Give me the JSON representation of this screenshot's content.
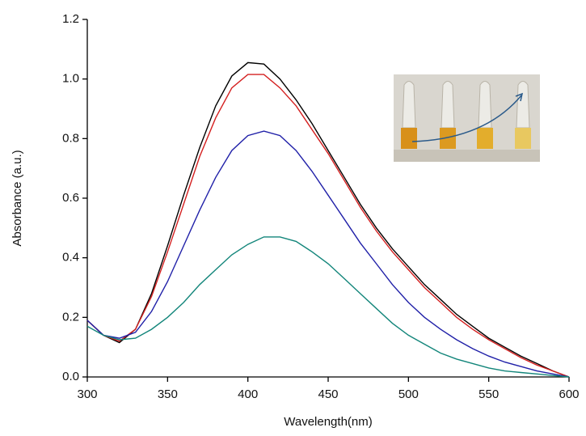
{
  "chart_data": {
    "type": "line",
    "x_label": "Wavelength(nm)",
    "y_label": "Absorbance (a.u.)",
    "x": [
      300,
      310,
      320,
      330,
      340,
      350,
      360,
      370,
      380,
      390,
      400,
      410,
      420,
      430,
      440,
      450,
      460,
      470,
      480,
      490,
      500,
      510,
      520,
      530,
      540,
      550,
      560,
      570,
      580,
      590,
      600
    ],
    "series": [
      {
        "color": "#000000",
        "values": [
          0.19,
          0.14,
          0.115,
          0.16,
          0.28,
          0.44,
          0.61,
          0.77,
          0.91,
          1.01,
          1.055,
          1.05,
          1.0,
          0.93,
          0.85,
          0.76,
          0.67,
          0.58,
          0.5,
          0.43,
          0.37,
          0.31,
          0.26,
          0.21,
          0.17,
          0.13,
          0.1,
          0.07,
          0.045,
          0.02,
          0.0
        ]
      },
      {
        "color": "#d42020",
        "values": [
          0.19,
          0.14,
          0.12,
          0.16,
          0.27,
          0.42,
          0.58,
          0.74,
          0.87,
          0.97,
          1.015,
          1.015,
          0.97,
          0.91,
          0.83,
          0.75,
          0.66,
          0.57,
          0.49,
          0.42,
          0.36,
          0.3,
          0.25,
          0.2,
          0.16,
          0.125,
          0.095,
          0.065,
          0.04,
          0.02,
          0.0
        ]
      },
      {
        "color": "#2020a8",
        "values": [
          0.19,
          0.14,
          0.13,
          0.15,
          0.22,
          0.32,
          0.44,
          0.56,
          0.67,
          0.76,
          0.81,
          0.825,
          0.81,
          0.76,
          0.69,
          0.61,
          0.53,
          0.45,
          0.38,
          0.31,
          0.25,
          0.2,
          0.16,
          0.125,
          0.095,
          0.07,
          0.05,
          0.035,
          0.02,
          0.01,
          0.0
        ]
      },
      {
        "color": "#12857a",
        "values": [
          0.17,
          0.14,
          0.125,
          0.13,
          0.16,
          0.2,
          0.25,
          0.31,
          0.36,
          0.41,
          0.445,
          0.47,
          0.47,
          0.455,
          0.42,
          0.38,
          0.33,
          0.28,
          0.23,
          0.18,
          0.14,
          0.11,
          0.08,
          0.06,
          0.045,
          0.03,
          0.02,
          0.015,
          0.01,
          0.005,
          0.0
        ]
      }
    ],
    "xlim": [
      300,
      600
    ],
    "xticks": [
      300,
      350,
      400,
      450,
      500,
      550,
      600
    ],
    "ylim": [
      0,
      1.2
    ],
    "yticks": [
      {
        "value": 0,
        "label": "0.0"
      },
      0.2,
      0.4,
      0.6,
      0.8,
      {
        "value": 1,
        "label": "1.0"
      },
      1.2
    ]
  }
}
